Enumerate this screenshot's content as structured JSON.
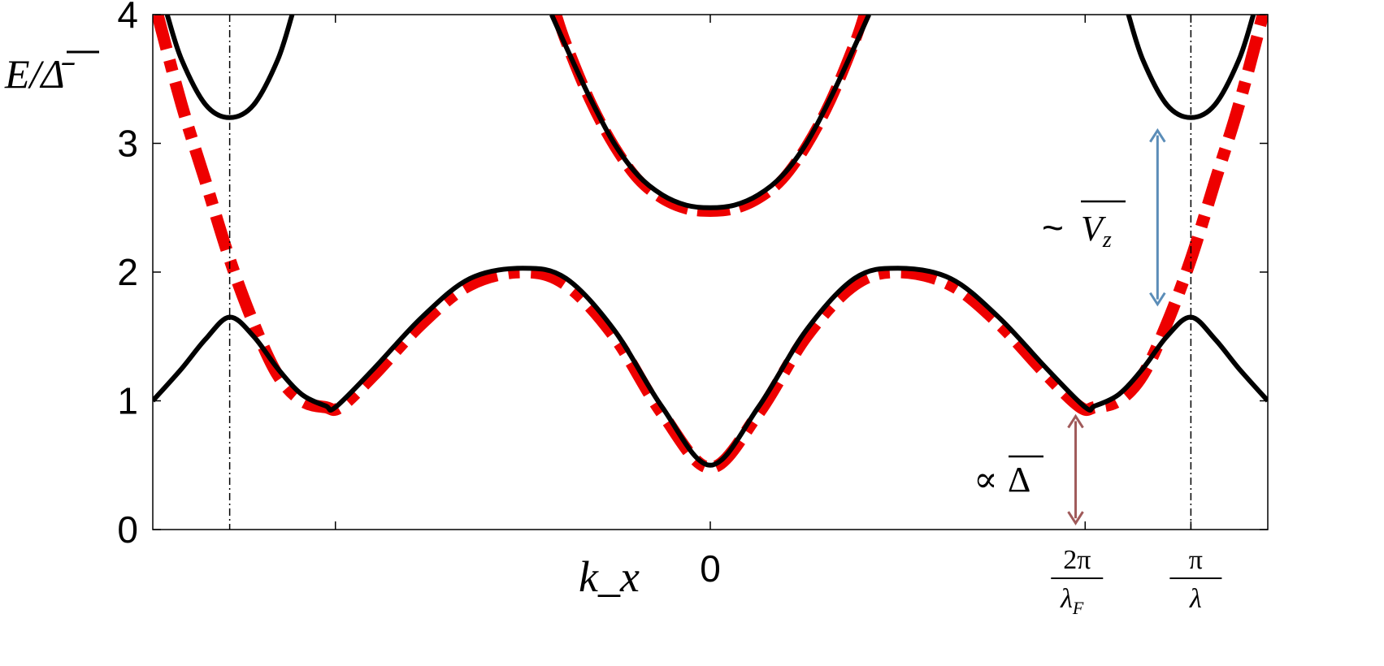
{
  "chart_data": {
    "type": "line",
    "title": "",
    "xlabel": "k_x",
    "ylabel": "E/Δ̄",
    "ylim": [
      0,
      4
    ],
    "xlim": [
      -1.16,
      1.16
    ],
    "y_ticks": [
      "0",
      "1",
      "2",
      "3",
      "4"
    ],
    "x_ticks": [
      {
        "value": -0.78,
        "label": ""
      },
      {
        "value": 0,
        "label": "0"
      },
      {
        "value": 0.78,
        "label": "2π/λF"
      },
      {
        "value": 1.0,
        "label": "π/λ"
      }
    ],
    "vertical_guides": [
      -1.0,
      1.0
    ],
    "grid": false,
    "legend": "none",
    "series": [
      {
        "style": "solid",
        "color": "#000000",
        "x": [
          -1.16,
          -1.1,
          -1.05,
          -1.0,
          -0.95,
          -0.9,
          -0.85,
          -0.8,
          -0.78,
          -0.7,
          -0.6,
          -0.5,
          -0.39,
          -0.3,
          -0.2,
          -0.1,
          0,
          0.1,
          0.2,
          0.3,
          0.39,
          0.5,
          0.6,
          0.7,
          0.78,
          0.8,
          0.85,
          0.9,
          0.95,
          1.0,
          1.05,
          1.1,
          1.16
        ],
        "y": [
          1.0,
          1.25,
          1.48,
          1.65,
          1.5,
          1.25,
          1.05,
          0.96,
          0.95,
          1.25,
          1.65,
          1.95,
          2.03,
          1.95,
          1.55,
          0.95,
          0.5,
          0.95,
          1.55,
          1.95,
          2.03,
          1.95,
          1.65,
          1.25,
          0.95,
          0.96,
          1.05,
          1.25,
          1.5,
          1.65,
          1.48,
          1.25,
          1.0
        ]
      },
      {
        "style": "dash-dot",
        "color": "#ee0000",
        "x": [
          -1.15,
          -1.1,
          -1.05,
          -1.0,
          -0.95,
          -0.9,
          -0.85,
          -0.8,
          -0.77,
          -0.7,
          -0.6,
          -0.5,
          -0.39,
          -0.3,
          -0.2,
          -0.1,
          0,
          0.1,
          0.2,
          0.3,
          0.39,
          0.5,
          0.6,
          0.7,
          0.77,
          0.8,
          0.85,
          0.9,
          0.95,
          1.0,
          1.05,
          1.1,
          1.15
        ],
        "y": [
          4.0,
          3.3,
          2.7,
          2.1,
          1.6,
          1.2,
          1.0,
          0.95,
          0.95,
          1.2,
          1.6,
          1.9,
          2.0,
          1.9,
          1.5,
          0.9,
          0.48,
          0.9,
          1.5,
          1.9,
          2.0,
          1.9,
          1.6,
          1.2,
          0.95,
          0.95,
          1.0,
          1.2,
          1.6,
          2.1,
          2.7,
          3.3,
          4.0
        ]
      },
      {
        "style": "solid",
        "color": "#000000",
        "x": [
          -0.33,
          -0.3,
          -0.25,
          -0.2,
          -0.15,
          -0.1,
          -0.05,
          0,
          0.05,
          0.1,
          0.15,
          0.2,
          0.25,
          0.3,
          0.33
        ],
        "y": [
          4.0,
          3.75,
          3.35,
          3.0,
          2.75,
          2.6,
          2.52,
          2.5,
          2.52,
          2.6,
          2.75,
          3.0,
          3.35,
          3.75,
          4.0
        ]
      },
      {
        "style": "dashed",
        "color": "#ee0000",
        "x": [
          -0.32,
          -0.3,
          -0.25,
          -0.2,
          -0.15,
          -0.1,
          -0.05,
          0,
          0.05,
          0.1,
          0.15,
          0.2,
          0.25,
          0.3,
          0.32
        ],
        "y": [
          4.0,
          3.78,
          3.33,
          2.98,
          2.72,
          2.57,
          2.49,
          2.47,
          2.49,
          2.57,
          2.72,
          2.98,
          3.33,
          3.78,
          4.0
        ]
      },
      {
        "style": "solid",
        "color": "#000000",
        "x": [
          -1.13,
          -1.1,
          -1.05,
          -1.0,
          -0.95,
          -0.9,
          -0.87
        ],
        "y": [
          4.0,
          3.65,
          3.3,
          3.2,
          3.3,
          3.65,
          4.0
        ]
      },
      {
        "style": "solid",
        "color": "#000000",
        "x": [
          0.87,
          0.9,
          0.95,
          1.0,
          1.05,
          1.1,
          1.13
        ],
        "y": [
          4.0,
          3.65,
          3.3,
          3.2,
          3.3,
          3.65,
          4.0
        ]
      }
    ],
    "annotations": [
      {
        "text": "~",
        "math": "V̄z",
        "color": "#5b8db8",
        "arrow_x": 0.89,
        "arrow_y": [
          1.75,
          3.1
        ]
      },
      {
        "text": "∝",
        "math": "Δ̄",
        "color": "#a05a5a",
        "arrow_x": 0.75,
        "arrow_y": [
          0.05,
          0.88
        ]
      }
    ]
  }
}
